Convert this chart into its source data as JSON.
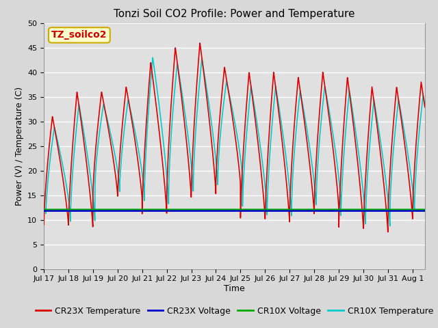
{
  "title": "Tonzi Soil CO2 Profile: Power and Temperature",
  "xlabel": "Time",
  "ylabel": "Power (V) / Temperature (C)",
  "annotation": "TZ_soilco2",
  "ylim": [
    0,
    50
  ],
  "total_days": 15.5,
  "yticks": [
    0,
    5,
    10,
    15,
    20,
    25,
    30,
    35,
    40,
    45,
    50
  ],
  "xtick_labels": [
    "Jul 17",
    "Jul 18",
    "Jul 19",
    "Jul 20",
    "Jul 21",
    "Jul 22",
    "Jul 23",
    "Jul 24",
    "Jul 25",
    "Jul 26",
    "Jul 27",
    "Jul 28",
    "Jul 29",
    "Jul 30",
    "Jul 31",
    "Aug 1"
  ],
  "cr23x_voltage_value": 11.8,
  "cr10x_voltage_value": 12.0,
  "background_color": "#d8d8d8",
  "plot_bg_color": "#e0e0e0",
  "cr23x_temp_color": "#dd0000",
  "cr23x_voltage_color": "#0000cc",
  "cr10x_voltage_color": "#00aa00",
  "cr10x_temp_color": "#00cccc",
  "legend_labels": [
    "CR23X Temperature",
    "CR23X Voltage",
    "CR10X Voltage",
    "CR10X Temperature"
  ],
  "title_fontsize": 11,
  "axis_label_fontsize": 9,
  "tick_fontsize": 8,
  "legend_fontsize": 9,
  "annotation_fontsize": 10,
  "linewidth_temp": 1.2,
  "linewidth_voltage": 2.5
}
